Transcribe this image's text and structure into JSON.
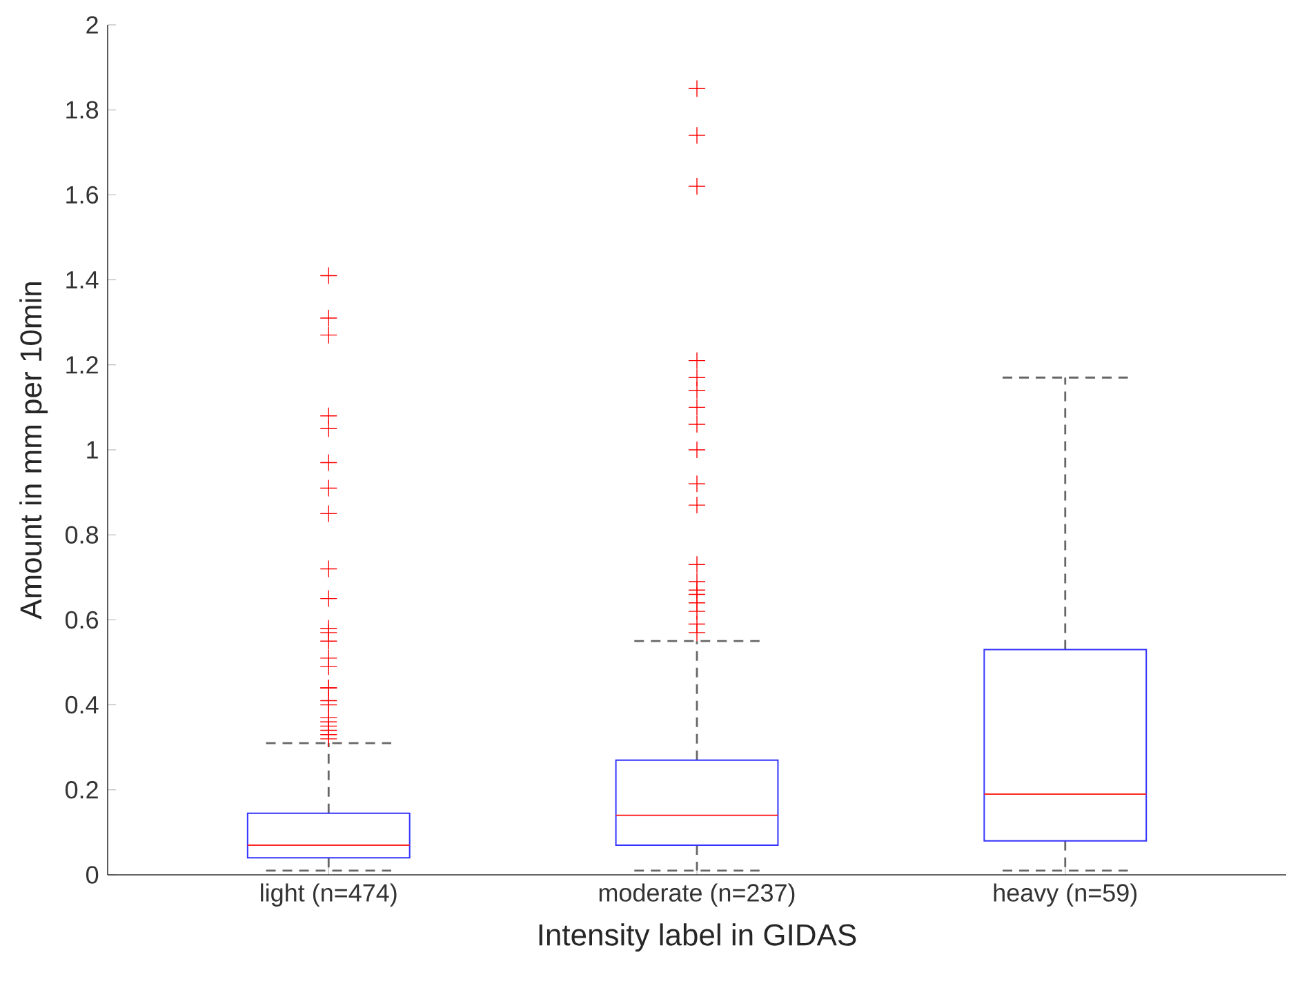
{
  "chart_data": {
    "type": "box",
    "categories": [
      "light (n=474)",
      "moderate (n=237)",
      "heavy (n=59)"
    ],
    "xlabel": "Intensity label in GIDAS",
    "ylabel": "Amount in mm per 10min",
    "ylim": [
      0,
      2
    ],
    "yticks": [
      0,
      0.2,
      0.4,
      0.6,
      0.8,
      1,
      1.2,
      1.4,
      1.6,
      1.8,
      2
    ],
    "marker": "cross",
    "boxes": [
      {
        "low": 0.01,
        "q1": 0.04,
        "median": 0.07,
        "q3": 0.145,
        "high": 0.31,
        "outliers": [
          1.41,
          1.31,
          1.27,
          1.08,
          1.05,
          0.97,
          0.91,
          0.85,
          0.72,
          0.65,
          0.58,
          0.57,
          0.55,
          0.51,
          0.49,
          0.44,
          0.44,
          0.41,
          0.4,
          0.37,
          0.36,
          0.35,
          0.34,
          0.33,
          0.32
        ]
      },
      {
        "low": 0.01,
        "q1": 0.07,
        "median": 0.14,
        "q3": 0.27,
        "high": 0.55,
        "outliers": [
          1.85,
          1.74,
          1.62,
          1.21,
          1.17,
          1.14,
          1.1,
          1.06,
          1.0,
          0.92,
          0.87,
          0.73,
          0.69,
          0.67,
          0.66,
          0.64,
          0.62,
          0.59,
          0.57
        ]
      },
      {
        "low": 0.01,
        "q1": 0.08,
        "median": 0.19,
        "q3": 0.53,
        "high": 1.17
      }
    ]
  }
}
